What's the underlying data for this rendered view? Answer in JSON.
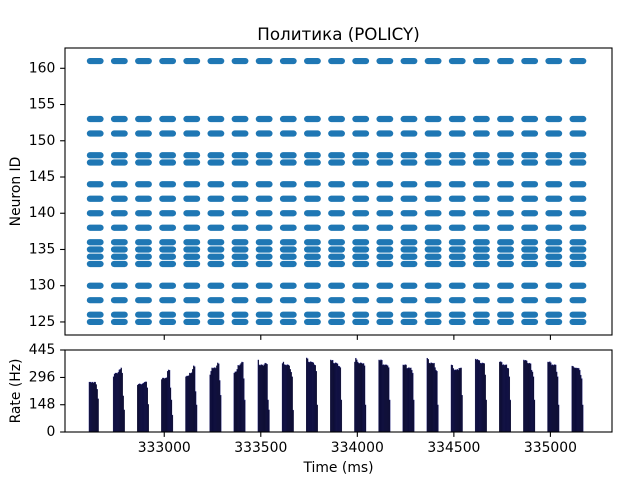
{
  "chart_data": [
    {
      "type": "scatter",
      "title": "Политика (POLICY)",
      "ylabel": "Neuron ID",
      "xlim": [
        332486,
        335319
      ],
      "ylim": [
        123.2,
        162.8
      ],
      "xticks": [
        333000,
        333500,
        334000,
        334500,
        335000
      ],
      "yticks": [
        125,
        130,
        135,
        140,
        145,
        150,
        155,
        160
      ],
      "grid": false,
      "marker_color": "#1f77b4",
      "neuron_ids": [
        125,
        126,
        128,
        130,
        133,
        134,
        135,
        136,
        138,
        140,
        142,
        144,
        147,
        148,
        151,
        153,
        161
      ],
      "spike_windows_ms": [
        [
          332615,
          332670
        ],
        [
          332740,
          332795
        ],
        [
          332865,
          332920
        ],
        [
          332990,
          333045
        ],
        [
          333115,
          333170
        ],
        [
          333240,
          333295
        ],
        [
          333365,
          333420
        ],
        [
          333490,
          333545
        ],
        [
          333615,
          333670
        ],
        [
          333740,
          333795
        ],
        [
          333865,
          333920
        ],
        [
          333990,
          334045
        ],
        [
          334115,
          334170
        ],
        [
          334240,
          334295
        ],
        [
          334365,
          334420
        ],
        [
          334490,
          334545
        ],
        [
          334615,
          334670
        ],
        [
          334740,
          334795
        ],
        [
          334865,
          334920
        ],
        [
          334990,
          335045
        ],
        [
          335115,
          335170
        ]
      ]
    },
    {
      "type": "bar",
      "xlabel": "Time (ms)",
      "ylabel": "Rate (Hz)",
      "xlim": [
        332486,
        335319
      ],
      "ylim": [
        0,
        445
      ],
      "xticks": [
        333000,
        333500,
        334000,
        334500,
        335000
      ],
      "yticks": [
        0,
        148,
        296,
        445
      ],
      "grid": false,
      "bar_color": "#000000",
      "edge_color": "#1f1f8f",
      "bin_width_ms": 5,
      "bursts": [
        {
          "start_ms": 332610,
          "rates_hz": [
            271,
            271,
            268,
            271,
            266,
            271,
            271,
            258,
            232,
            180
          ]
        },
        {
          "start_ms": 332735,
          "rates_hz": [
            300,
            315,
            320,
            320,
            318,
            325,
            337,
            340,
            348,
            320,
            196,
            120
          ]
        },
        {
          "start_ms": 332860,
          "rates_hz": [
            255,
            260,
            262,
            260,
            258,
            262,
            265,
            270,
            272,
            272,
            240,
            150
          ]
        },
        {
          "start_ms": 332985,
          "rates_hz": [
            285,
            293,
            293,
            290,
            293,
            295,
            330,
            337,
            335,
            240,
            174,
            92
          ]
        },
        {
          "start_ms": 333110,
          "rates_hz": [
            300,
            304,
            304,
            306,
            320,
            318,
            322,
            340,
            359,
            355,
            220,
            147
          ]
        },
        {
          "start_ms": 333235,
          "rates_hz": [
            310,
            330,
            348,
            345,
            348,
            350,
            346,
            360,
            375,
            370,
            280,
            200
          ]
        },
        {
          "start_ms": 333360,
          "rates_hz": [
            320,
            326,
            328,
            340,
            362,
            360,
            365,
            372,
            380,
            378,
            290,
            174
          ]
        },
        {
          "start_ms": 333485,
          "rates_hz": [
            391,
            364,
            362,
            366,
            364,
            360,
            366,
            374,
            372,
            368,
            174,
            120
          ]
        },
        {
          "start_ms": 333610,
          "rates_hz": [
            372,
            380,
            366,
            364,
            362,
            366,
            364,
            360,
            340,
            325,
            300,
            119
          ]
        },
        {
          "start_ms": 333735,
          "rates_hz": [
            402,
            398,
            380,
            378,
            382,
            380,
            378,
            376,
            365,
            362,
            330,
            147
          ]
        },
        {
          "start_ms": 333860,
          "rates_hz": [
            391,
            388,
            390,
            374,
            372,
            376,
            374,
            370,
            358,
            356,
            350,
            174
          ]
        },
        {
          "start_ms": 333985,
          "rates_hz": [
            380,
            401,
            392,
            380,
            374,
            372,
            376,
            374,
            370,
            372,
            360,
            147
          ]
        },
        {
          "start_ms": 334110,
          "rates_hz": [
            391,
            388,
            392,
            390,
            364,
            366,
            362,
            365,
            364,
            360,
            350,
            174
          ]
        },
        {
          "start_ms": 334235,
          "rates_hz": [
            364,
            362,
            366,
            364,
            345,
            347,
            350,
            346,
            348,
            336,
            320,
            174
          ]
        },
        {
          "start_ms": 334360,
          "rates_hz": [
            401,
            395,
            374,
            372,
            376,
            374,
            372,
            374,
            350,
            336,
            330,
            147
          ]
        },
        {
          "start_ms": 334485,
          "rates_hz": [
            364,
            362,
            345,
            336,
            338,
            336,
            340,
            336,
            346,
            347,
            348,
            200
          ]
        },
        {
          "start_ms": 334610,
          "rates_hz": [
            396,
            392,
            394,
            390,
            388,
            374,
            372,
            375,
            374,
            372,
            310,
            174
          ]
        },
        {
          "start_ms": 334735,
          "rates_hz": [
            380,
            382,
            378,
            364,
            366,
            362,
            364,
            365,
            347,
            345,
            300,
            174
          ]
        },
        {
          "start_ms": 334860,
          "rates_hz": [
            391,
            388,
            390,
            386,
            374,
            372,
            374,
            370,
            336,
            326,
            300,
            174
          ]
        },
        {
          "start_ms": 334985,
          "rates_hz": [
            380,
            378,
            382,
            376,
            364,
            365,
            362,
            366,
            364,
            326,
            300,
            147
          ]
        },
        {
          "start_ms": 335110,
          "rates_hz": [
            358,
            356,
            350,
            347,
            348,
            346,
            347,
            345,
            336,
            309,
            290,
            147
          ]
        }
      ]
    }
  ]
}
